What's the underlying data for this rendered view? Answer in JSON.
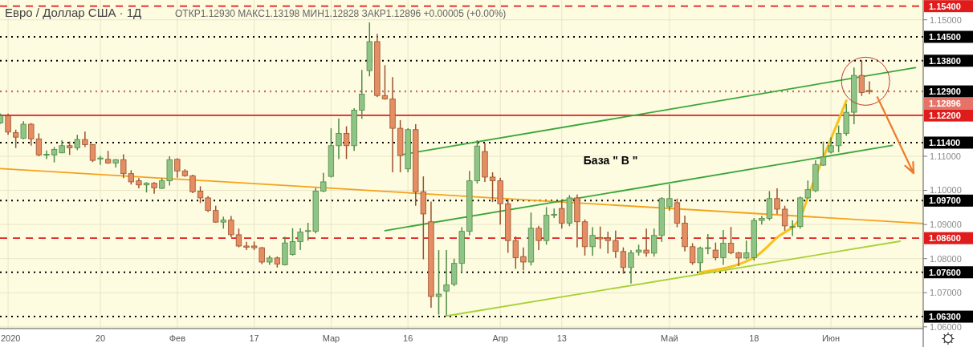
{
  "chart_data": {
    "type": "candlestick",
    "title": "Евро / Доллар США · 1Д",
    "subtitle": "ОТКР1.12930 МАКС1.13198 МИН1.12828 ЗАКР1.12896 +0.00005 (+0.00%)",
    "categories": [
      null,
      "2020",
      null,
      null,
      null,
      null,
      null,
      null,
      null,
      null,
      null,
      null,
      null,
      "20",
      null,
      null,
      null,
      null,
      null,
      null,
      null,
      null,
      null,
      "Фев",
      null,
      null,
      null,
      null,
      null,
      null,
      null,
      null,
      null,
      "17",
      null,
      null,
      null,
      null,
      null,
      null,
      null,
      null,
      null,
      "Мар",
      null,
      null,
      null,
      null,
      null,
      null,
      null,
      null,
      null,
      "16",
      null,
      null,
      null,
      null,
      null,
      null,
      null,
      null,
      null,
      null,
      null,
      "Апр",
      null,
      null,
      null,
      null,
      null,
      null,
      null,
      "13",
      null,
      null,
      null,
      null,
      null,
      null,
      null,
      null,
      null,
      null,
      null,
      null,
      null,
      "Май",
      null,
      null,
      null,
      null,
      null,
      null,
      null,
      null,
      null,
      null,
      "18",
      null,
      null,
      null,
      null,
      null,
      null,
      null,
      null,
      null,
      "Июн",
      null,
      null,
      null,
      null,
      null,
      null,
      null,
      null,
      null,
      null,
      null,
      null
    ],
    "ohlc": [
      [
        1.1198,
        1.1225,
        1.1195,
        1.1219
      ],
      [
        1.1219,
        1.1225,
        1.1163,
        1.1171
      ],
      [
        1.1169,
        1.1178,
        1.1124,
        1.1156
      ],
      [
        1.1153,
        1.1203,
        1.115,
        1.1194
      ],
      [
        1.1194,
        1.1197,
        1.1131,
        1.1151
      ],
      [
        1.1151,
        1.1167,
        1.11,
        1.1104
      ],
      [
        1.1104,
        1.1117,
        1.1092,
        1.1106
      ],
      [
        1.1104,
        1.1127,
        1.1082,
        1.112
      ],
      [
        1.111,
        1.1147,
        1.1109,
        1.1131
      ],
      [
        1.1131,
        1.1143,
        1.1104,
        1.1125
      ],
      [
        1.1125,
        1.1163,
        1.1118,
        1.1149
      ],
      [
        1.1149,
        1.1172,
        1.1127,
        1.1134
      ],
      [
        1.1134,
        1.1136,
        1.1083,
        1.1088
      ],
      [
        1.1092,
        1.1101,
        1.1075,
        1.1095
      ],
      [
        1.1091,
        1.1116,
        1.1078,
        1.108
      ],
      [
        1.108,
        1.1092,
        1.1067,
        1.109
      ],
      [
        1.109,
        1.1106,
        1.1036,
        1.1049
      ],
      [
        1.1049,
        1.1059,
        1.1017,
        1.1025
      ],
      [
        1.1028,
        1.1036,
        1.1006,
        1.1016
      ],
      [
        1.1016,
        1.1024,
        1.0994,
        1.1021
      ],
      [
        1.1021,
        1.1024,
        1.099,
        1.1007
      ],
      [
        1.1006,
        1.1036,
        1.1004,
        1.1028
      ],
      [
        1.1028,
        1.11,
        1.1014,
        1.109
      ],
      [
        1.1091,
        1.1094,
        1.1037,
        1.1057
      ],
      [
        1.1057,
        1.1062,
        1.104,
        1.1043
      ],
      [
        1.1043,
        1.1046,
        1.0992,
        1.0996
      ],
      [
        1.0998,
        1.1012,
        1.0963,
        1.0978
      ],
      [
        1.0978,
        1.0983,
        1.0937,
        1.0941
      ],
      [
        1.0941,
        1.0955,
        1.0905,
        1.0907
      ],
      [
        1.0907,
        1.0923,
        1.0888,
        1.0913
      ],
      [
        1.0913,
        1.0925,
        1.0863,
        1.087
      ],
      [
        1.087,
        1.0888,
        1.0833,
        1.0837
      ],
      [
        1.0837,
        1.0849,
        1.0825,
        1.0833
      ],
      [
        1.0837,
        1.085,
        1.0825,
        1.0832
      ],
      [
        1.0832,
        1.0834,
        1.0784,
        1.079
      ],
      [
        1.079,
        1.0809,
        1.0782,
        1.0802
      ],
      [
        1.0802,
        1.0806,
        1.0774,
        1.0784
      ],
      [
        1.0782,
        1.0864,
        1.078,
        1.0846
      ],
      [
        1.0812,
        1.0889,
        1.0809,
        1.085
      ],
      [
        1.085,
        1.0889,
        1.0825,
        1.0878
      ],
      [
        1.088,
        1.0905,
        1.0853,
        1.0882
      ],
      [
        1.088,
        1.1007,
        1.0874,
        1.0998
      ],
      [
        1.0998,
        1.1051,
        1.0995,
        1.1025
      ],
      [
        1.1041,
        1.1182,
        1.1038,
        1.1131
      ],
      [
        1.1131,
        1.1211,
        1.1092,
        1.1167
      ],
      [
        1.1167,
        1.1188,
        1.1092,
        1.1131
      ],
      [
        1.1131,
        1.1241,
        1.1116,
        1.1235
      ],
      [
        1.1235,
        1.1353,
        1.121,
        1.1282
      ],
      [
        1.1351,
        1.1492,
        1.1334,
        1.1436
      ],
      [
        1.1436,
        1.1459,
        1.1273,
        1.1278
      ],
      [
        1.1278,
        1.1367,
        1.1266,
        1.1268
      ],
      [
        1.1268,
        1.1332,
        1.1053,
        1.1182
      ],
      [
        1.1182,
        1.1206,
        1.1053,
        1.1102
      ],
      [
        1.1063,
        1.1182,
        1.1053,
        1.1178
      ],
      [
        1.1178,
        1.1194,
        1.0955,
        1.0996
      ],
      [
        1.0996,
        1.1041,
        1.0798,
        1.0931
      ],
      [
        1.0908,
        1.0967,
        1.0656,
        1.0689
      ],
      [
        1.0689,
        1.0825,
        1.0636,
        1.0696
      ],
      [
        1.0705,
        1.0825,
        1.0633,
        1.0723
      ],
      [
        1.0725,
        1.08,
        1.0719,
        1.0786
      ],
      [
        1.0786,
        1.0892,
        1.0758,
        1.088
      ],
      [
        1.088,
        1.1057,
        1.0868,
        1.1028
      ],
      [
        1.1028,
        1.1147,
        1.102,
        1.113
      ],
      [
        1.1114,
        1.1139,
        1.1025,
        1.1039
      ],
      [
        1.1039,
        1.1053,
        1.0966,
        1.1028
      ],
      [
        1.1028,
        1.1037,
        1.09,
        1.0961
      ],
      [
        1.0961,
        1.0974,
        1.0817,
        1.0853
      ],
      [
        1.0853,
        1.0865,
        1.077,
        1.0803
      ],
      [
        1.0806,
        1.0833,
        1.0766,
        1.079
      ],
      [
        1.079,
        1.0935,
        1.078,
        1.0889
      ],
      [
        1.0889,
        1.0896,
        1.0825,
        1.0853
      ],
      [
        1.0853,
        1.0951,
        1.0841,
        1.0927
      ],
      [
        1.0927,
        1.0947,
        1.0919,
        1.093
      ],
      [
        1.0947,
        1.0974,
        1.0888,
        1.0904
      ],
      [
        1.0904,
        1.0986,
        1.0895,
        1.0978
      ],
      [
        1.0978,
        1.0988,
        1.0833,
        1.0908
      ],
      [
        1.0908,
        1.0915,
        1.0809,
        1.0835
      ],
      [
        1.0835,
        1.0892,
        1.0808,
        1.0868
      ],
      [
        1.0862,
        1.0894,
        1.0829,
        1.0858
      ],
      [
        1.086,
        1.0879,
        1.0815,
        1.0853
      ],
      [
        1.0853,
        1.0882,
        1.0802,
        1.0821
      ],
      [
        1.0821,
        1.0833,
        1.0756,
        1.0774
      ],
      [
        1.0774,
        1.0825,
        1.0727,
        1.0817
      ],
      [
        1.0819,
        1.0841,
        1.0809,
        1.0825
      ],
      [
        1.0825,
        1.0888,
        1.0806,
        1.0816
      ],
      [
        1.0816,
        1.0888,
        1.0806,
        1.0868
      ],
      [
        1.0868,
        1.098,
        1.0849,
        1.0976
      ],
      [
        1.0952,
        1.1018,
        1.094,
        1.0976
      ],
      [
        1.0964,
        1.0976,
        1.0892,
        1.0904
      ],
      [
        1.0904,
        1.0926,
        1.0821,
        1.0835
      ],
      [
        1.0835,
        1.0845,
        1.0782,
        1.0788
      ],
      [
        1.0788,
        1.0835,
        1.0762,
        1.0831
      ],
      [
        1.0831,
        1.0872,
        1.0813,
        1.0832
      ],
      [
        1.0825,
        1.0847,
        1.0795,
        1.0803
      ],
      [
        1.0803,
        1.0884,
        1.0782,
        1.0845
      ],
      [
        1.0845,
        1.0893,
        1.0813,
        1.0817
      ],
      [
        1.0817,
        1.082,
        1.0778,
        1.0802
      ],
      [
        1.0802,
        1.0853,
        1.0798,
        1.0817
      ],
      [
        1.0803,
        1.0919,
        1.0794,
        1.0912
      ],
      [
        1.0912,
        1.0925,
        1.09,
        1.0918
      ],
      [
        1.0918,
        1.0998,
        1.0912,
        1.0976
      ],
      [
        1.0976,
        1.1006,
        1.0931,
        1.0945
      ],
      [
        1.0945,
        1.0955,
        1.0882,
        1.0896
      ],
      [
        1.0892,
        1.0912,
        1.0866,
        1.0894
      ],
      [
        1.0894,
        1.0982,
        1.0888,
        1.0978
      ],
      [
        1.0978,
        1.1029,
        1.0975,
        1.1002
      ],
      [
        1.0999,
        1.1088,
        1.0995,
        1.1076
      ],
      [
        1.1074,
        1.1143,
        1.1072,
        1.1098
      ],
      [
        1.1112,
        1.1155,
        1.1108,
        1.1131
      ],
      [
        1.1131,
        1.119,
        1.1112,
        1.1167
      ],
      [
        1.1167,
        1.1253,
        1.116,
        1.1229
      ],
      [
        1.1229,
        1.136,
        1.1194,
        1.1337
      ],
      [
        1.1337,
        1.1381,
        1.1277,
        1.1287
      ],
      [
        1.1293,
        1.13198,
        1.12828,
        1.12896
      ],
      null,
      null,
      null,
      null,
      null,
      null,
      null
    ],
    "ylim": [
      1.0595,
      1.1558
    ],
    "yticks": [
      {
        "value": 1.06,
        "label": "1.06000"
      },
      {
        "value": 1.07,
        "label": "1.07000"
      },
      {
        "value": 1.08,
        "label": "1.08000"
      },
      {
        "value": 1.09,
        "label": "1.09000"
      },
      {
        "value": 1.1,
        "label": "1.10000"
      },
      {
        "value": 1.11,
        "label": "1.11000"
      },
      {
        "value": 1.15,
        "label": "1.15000"
      }
    ],
    "grid": true,
    "ref_lines": [
      {
        "axis": "y",
        "value": 1.154,
        "label": "1.15400",
        "color": "#e01b1b",
        "line_style": "dashed"
      },
      {
        "axis": "y",
        "value": 1.145,
        "label": "1.14500",
        "color": "#000000",
        "line_style": "dotted"
      },
      {
        "axis": "y",
        "value": 1.138,
        "label": "1.13800",
        "color": "#000000",
        "line_style": "dotted"
      },
      {
        "axis": "y",
        "value": 1.129,
        "label": "1.12900",
        "color": "#000000",
        "line_style": "dotted"
      },
      {
        "axis": "y",
        "value": 1.12896,
        "label": "1.12896",
        "color": "#e57368",
        "line_style": "dotted"
      },
      {
        "axis": "y",
        "value": 1.122,
        "label": "1.12200",
        "color": "#e01b1b",
        "line_style": "solid"
      },
      {
        "axis": "y",
        "value": 1.114,
        "label": "1.11400",
        "color": "#000000",
        "line_style": "dotted"
      },
      {
        "axis": "y",
        "value": 1.097,
        "label": "1.09700",
        "color": "#000000",
        "line_style": "dotted"
      },
      {
        "axis": "y",
        "value": 1.086,
        "label": "1.08600",
        "color": "#e01b1b",
        "line_style": "dashed"
      },
      {
        "axis": "y",
        "value": 1.076,
        "label": "1.07600",
        "color": "#000000",
        "line_style": "dotted"
      },
      {
        "axis": "y",
        "value": 1.063,
        "label": "1.06300",
        "color": "#000000",
        "line_style": "dotted"
      }
    ],
    "series": [
      {
        "type": "line",
        "color": "#f5a21c",
        "values": [
          1.1064,
          null,
          null,
          null,
          null,
          null,
          null,
          null,
          null,
          null,
          null,
          null,
          null,
          null,
          null,
          null,
          null,
          null,
          null,
          null,
          null,
          null,
          null,
          null,
          null,
          null,
          null,
          null,
          null,
          null,
          null,
          null,
          null,
          null,
          null,
          null,
          null,
          null,
          null,
          null,
          null,
          null,
          null,
          null,
          null,
          null,
          null,
          null,
          null,
          null,
          null,
          null,
          null,
          null,
          null,
          null,
          null,
          null,
          null,
          null,
          null,
          null,
          null,
          null,
          null,
          null,
          null,
          null,
          null,
          null,
          null,
          null,
          null,
          null,
          null,
          null,
          null,
          null,
          null,
          null,
          null,
          null,
          null,
          null,
          null,
          null,
          null,
          null,
          null,
          null,
          null,
          null,
          null,
          null,
          null,
          null,
          null,
          null,
          null,
          null,
          null,
          null,
          null,
          null,
          null,
          null,
          null,
          null,
          null,
          null,
          null,
          null,
          null,
          null,
          null,
          null,
          null,
          null,
          null,
          null,
          1.0903
        ]
      },
      {
        "type": "line",
        "color": "#3aa63a",
        "values": [
          null,
          null,
          null,
          null,
          null,
          null,
          null,
          null,
          null,
          null,
          null,
          null,
          null,
          null,
          null,
          null,
          null,
          null,
          null,
          null,
          null,
          null,
          null,
          null,
          null,
          null,
          null,
          null,
          null,
          null,
          null,
          null,
          null,
          null,
          null,
          null,
          null,
          null,
          null,
          null,
          null,
          null,
          null,
          null,
          null,
          null,
          null,
          null,
          null,
          null,
          null,
          null,
          1.1104,
          null,
          null,
          null,
          null,
          null,
          null,
          null,
          null,
          null,
          null,
          null,
          null,
          null,
          null,
          null,
          null,
          null,
          null,
          null,
          null,
          null,
          null,
          null,
          null,
          null,
          null,
          null,
          null,
          null,
          null,
          null,
          null,
          null,
          null,
          null,
          null,
          null,
          null,
          null,
          null,
          null,
          null,
          null,
          null,
          null,
          null,
          null,
          null,
          null,
          null,
          null,
          null,
          null,
          null,
          null,
          null,
          null,
          null,
          null,
          null,
          null,
          null,
          null,
          null,
          null,
          null,
          1.136,
          null
        ]
      },
      {
        "type": "line",
        "color": "#3aa63a",
        "values": [
          null,
          null,
          null,
          null,
          null,
          null,
          null,
          null,
          null,
          null,
          null,
          null,
          null,
          null,
          null,
          null,
          null,
          null,
          null,
          null,
          null,
          null,
          null,
          null,
          null,
          null,
          null,
          null,
          null,
          null,
          null,
          null,
          null,
          null,
          null,
          null,
          null,
          null,
          null,
          null,
          null,
          null,
          null,
          null,
          null,
          null,
          null,
          null,
          null,
          null,
          1.0882,
          null,
          null,
          null,
          null,
          null,
          null,
          null,
          null,
          null,
          null,
          null,
          null,
          null,
          null,
          null,
          null,
          null,
          null,
          null,
          null,
          null,
          null,
          null,
          null,
          null,
          null,
          null,
          null,
          null,
          null,
          null,
          null,
          null,
          null,
          null,
          null,
          null,
          null,
          null,
          null,
          null,
          null,
          null,
          null,
          null,
          null,
          null,
          null,
          null,
          null,
          null,
          null,
          null,
          null,
          null,
          null,
          null,
          null,
          null,
          null,
          null,
          null,
          null,
          null,
          null,
          1.1132,
          null,
          null,
          null,
          null
        ]
      },
      {
        "type": "line",
        "color": "#a8d236",
        "values": [
          null,
          null,
          null,
          null,
          null,
          null,
          null,
          null,
          null,
          null,
          null,
          null,
          null,
          null,
          null,
          null,
          null,
          null,
          null,
          null,
          null,
          null,
          null,
          null,
          null,
          null,
          null,
          null,
          null,
          null,
          null,
          null,
          null,
          null,
          null,
          null,
          null,
          null,
          null,
          null,
          null,
          null,
          null,
          null,
          null,
          null,
          null,
          null,
          null,
          null,
          null,
          null,
          null,
          null,
          null,
          null,
          null,
          null,
          1.0632,
          null,
          null,
          null,
          null,
          null,
          null,
          null,
          null,
          null,
          null,
          null,
          null,
          null,
          null,
          null,
          null,
          null,
          null,
          null,
          null,
          null,
          null,
          null,
          null,
          null,
          null,
          null,
          null,
          null,
          null,
          null,
          null,
          null,
          null,
          null,
          null,
          null,
          null,
          null,
          null,
          null,
          null,
          null,
          null,
          null,
          null,
          null,
          null,
          null,
          null,
          null,
          null,
          null,
          null,
          null,
          null,
          null,
          null,
          1.0851,
          null,
          null,
          null
        ]
      },
      {
        "type": "line",
        "color": "#f7c21a",
        "values": [
          null,
          null,
          null,
          null,
          null,
          null,
          null,
          null,
          null,
          null,
          null,
          null,
          null,
          null,
          null,
          null,
          null,
          null,
          null,
          null,
          null,
          null,
          null,
          null,
          null,
          null,
          null,
          null,
          null,
          null,
          null,
          null,
          null,
          null,
          null,
          null,
          null,
          null,
          null,
          null,
          null,
          null,
          null,
          null,
          null,
          null,
          null,
          null,
          null,
          null,
          null,
          null,
          null,
          null,
          null,
          null,
          null,
          null,
          null,
          null,
          null,
          null,
          null,
          null,
          null,
          null,
          null,
          null,
          null,
          null,
          null,
          null,
          null,
          null,
          null,
          null,
          null,
          null,
          null,
          null,
          null,
          null,
          null,
          null,
          null,
          null,
          null,
          null,
          null,
          null,
          null,
          1.076,
          null,
          null,
          null,
          null,
          null,
          null,
          1.0803,
          null,
          null,
          1.0862,
          null,
          null,
          1.092,
          1.098,
          1.1041,
          1.1095,
          1.1151,
          1.1206,
          1.1263,
          null,
          null,
          null,
          null,
          null,
          null,
          null,
          null,
          null,
          null
        ]
      }
    ],
    "annotations": [
      "База  \" В \""
    ]
  }
}
